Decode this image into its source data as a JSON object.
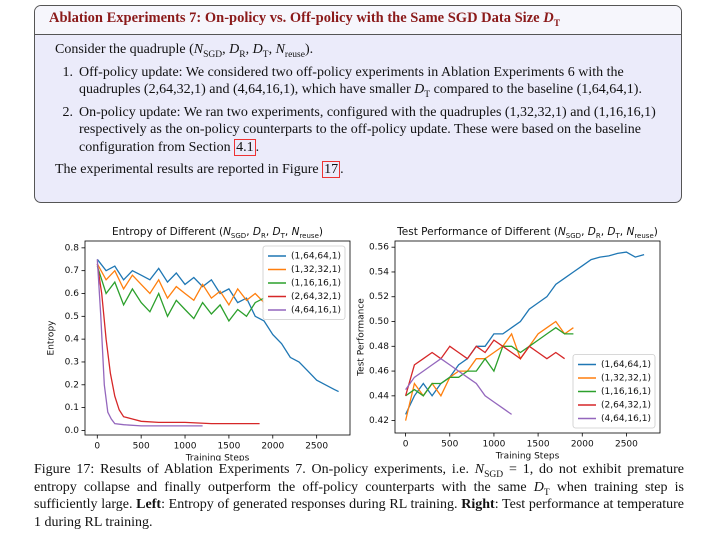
{
  "box": {
    "title": [
      "Ablation Experiments 7: On-policy vs. Off-policy with the Same SGD Data Size ",
      {
        "var": "D",
        "sub": "T"
      }
    ],
    "intro": [
      "Consider the quadruple (",
      {
        "var": "N",
        "sub": "SGD"
      },
      ", ",
      {
        "var": "D",
        "sub": "R"
      },
      ", ",
      {
        "var": "D",
        "sub": "T"
      },
      ", ",
      {
        "var": "N",
        "sub": "reuse"
      },
      ")."
    ],
    "items": [
      {
        "marker": "1.",
        "text": [
          "Off-policy update: We considered two off-policy experiments in Ablation Experiments 6 with the quadruples (2,64,32,1) and (4,64,16,1), which have smaller ",
          {
            "var": "D",
            "sub": "T"
          },
          " compared to the baseline (1,64,64,1)."
        ]
      },
      {
        "marker": "2.",
        "text": [
          "On-policy update: We ran two experiments, configured with the quadruples (1,32,32,1) and (1,16,16,1) respectively as the on-policy counterparts to the off-policy update. These were based on the baseline configuration from Section ",
          {
            "ref": "4.1"
          },
          "."
        ]
      }
    ],
    "outro": [
      "The experimental results are reported in Figure ",
      {
        "ref": "17"
      },
      "."
    ]
  },
  "chart_data": [
    {
      "type": "line",
      "title": [
        "Entropy of  Different (",
        {
          "var": "N",
          "sub": "SGD"
        },
        ", ",
        {
          "var": "D",
          "sub": "R"
        },
        ", ",
        {
          "var": "D",
          "sub": "T"
        },
        ", ",
        {
          "var": "N",
          "sub": "reuse"
        },
        ")"
      ],
      "xlabel": "Training Steps",
      "ylabel": "Entropy",
      "xlim": [
        -140,
        2880
      ],
      "ylim": [
        -0.02,
        0.83
      ],
      "xticks": [
        0,
        500,
        1000,
        1500,
        2000,
        2500
      ],
      "yticks": [
        {
          "value": 0,
          "label": "0.0"
        },
        0.1,
        0.2,
        0.3,
        0.4,
        0.5,
        0.6,
        0.7,
        0.8
      ],
      "legend": "upper right",
      "series": [
        {
          "name": "(1,64,64,1)",
          "color": "#1f77b4",
          "x": [
            0,
            100,
            200,
            300,
            400,
            500,
            600,
            700,
            800,
            900,
            1000,
            1100,
            1200,
            1300,
            1400,
            1500,
            1600,
            1700,
            1800,
            1900,
            2000,
            2100,
            2200,
            2300,
            2400,
            2500,
            2600,
            2700,
            2750
          ],
          "values": [
            0.75,
            0.7,
            0.72,
            0.66,
            0.7,
            0.68,
            0.66,
            0.71,
            0.65,
            0.69,
            0.64,
            0.67,
            0.63,
            0.66,
            0.6,
            0.62,
            0.56,
            0.58,
            0.5,
            0.48,
            0.42,
            0.38,
            0.32,
            0.3,
            0.26,
            0.22,
            0.2,
            0.18,
            0.17
          ]
        },
        {
          "name": "(1,32,32,1)",
          "color": "#ff7f0e",
          "x": [
            0,
            100,
            200,
            300,
            400,
            500,
            600,
            700,
            800,
            900,
            1000,
            1100,
            1200,
            1300,
            1400,
            1500,
            1600,
            1700,
            1800,
            1900
          ],
          "values": [
            0.73,
            0.66,
            0.7,
            0.62,
            0.68,
            0.64,
            0.6,
            0.66,
            0.58,
            0.63,
            0.6,
            0.57,
            0.64,
            0.58,
            0.61,
            0.55,
            0.62,
            0.57,
            0.6,
            0.56
          ]
        },
        {
          "name": "(1,16,16,1)",
          "color": "#2ca02c",
          "x": [
            0,
            100,
            200,
            300,
            400,
            500,
            600,
            700,
            800,
            900,
            1000,
            1100,
            1200,
            1300,
            1400,
            1500,
            1600,
            1700,
            1800,
            1900
          ],
          "values": [
            0.72,
            0.6,
            0.65,
            0.55,
            0.62,
            0.56,
            0.52,
            0.6,
            0.5,
            0.57,
            0.53,
            0.49,
            0.56,
            0.51,
            0.55,
            0.48,
            0.53,
            0.5,
            0.56,
            0.58
          ]
        },
        {
          "name": "(2,64,32,1)",
          "color": "#d62728",
          "x": [
            0,
            50,
            100,
            150,
            200,
            250,
            300,
            400,
            500,
            700,
            1000,
            1300,
            1600,
            1850
          ],
          "values": [
            0.73,
            0.6,
            0.4,
            0.25,
            0.15,
            0.09,
            0.06,
            0.05,
            0.04,
            0.035,
            0.035,
            0.03,
            0.03,
            0.03
          ]
        },
        {
          "name": "(4,64,16,1)",
          "color": "#9467bd",
          "x": [
            0,
            40,
            80,
            120,
            160,
            200,
            300,
            500,
            800,
            1200
          ],
          "values": [
            0.75,
            0.5,
            0.2,
            0.08,
            0.05,
            0.03,
            0.025,
            0.02,
            0.02,
            0.02
          ]
        }
      ]
    },
    {
      "type": "line",
      "title": [
        "Test Performance of Different (",
        {
          "var": "N",
          "sub": "SGD"
        },
        ", ",
        {
          "var": "D",
          "sub": "R"
        },
        ", ",
        {
          "var": "D",
          "sub": "T"
        },
        ", ",
        {
          "var": "N",
          "sub": "reuse"
        },
        ")"
      ],
      "xlabel": "Training Steps",
      "ylabel": "Test Performance",
      "xlim": [
        -120,
        2880
      ],
      "ylim": [
        0.41,
        0.565
      ],
      "xticks": [
        0,
        500,
        1000,
        1500,
        2000,
        2500
      ],
      "yticks": [
        0.42,
        0.44,
        0.46,
        0.48,
        {
          "value": 0.5,
          "label": "0.50"
        },
        0.52,
        0.54,
        0.56
      ],
      "legend": "lower right",
      "series": [
        {
          "name": "(1,64,64,1)",
          "color": "#1f77b4",
          "x": [
            0,
            100,
            200,
            300,
            400,
            500,
            600,
            700,
            800,
            900,
            1000,
            1100,
            1200,
            1300,
            1400,
            1500,
            1600,
            1700,
            1800,
            1900,
            2000,
            2100,
            2200,
            2300,
            2400,
            2500,
            2600,
            2700
          ],
          "values": [
            0.425,
            0.44,
            0.45,
            0.44,
            0.45,
            0.455,
            0.465,
            0.47,
            0.48,
            0.48,
            0.49,
            0.49,
            0.495,
            0.5,
            0.51,
            0.515,
            0.52,
            0.53,
            0.535,
            0.54,
            0.545,
            0.55,
            0.552,
            0.553,
            0.555,
            0.556,
            0.552,
            0.554
          ]
        },
        {
          "name": "(1,32,32,1)",
          "color": "#ff7f0e",
          "x": [
            0,
            100,
            200,
            300,
            400,
            500,
            600,
            700,
            800,
            900,
            1000,
            1100,
            1200,
            1300,
            1400,
            1500,
            1600,
            1700,
            1800,
            1900
          ],
          "values": [
            0.42,
            0.45,
            0.44,
            0.45,
            0.44,
            0.455,
            0.46,
            0.46,
            0.47,
            0.47,
            0.475,
            0.48,
            0.49,
            0.47,
            0.48,
            0.49,
            0.495,
            0.5,
            0.49,
            0.495
          ]
        },
        {
          "name": "(1,16,16,1)",
          "color": "#2ca02c",
          "x": [
            0,
            100,
            200,
            300,
            400,
            500,
            600,
            700,
            800,
            900,
            1000,
            1100,
            1200,
            1300,
            1400,
            1500,
            1600,
            1700,
            1800,
            1900
          ],
          "values": [
            0.44,
            0.445,
            0.44,
            0.45,
            0.45,
            0.455,
            0.455,
            0.46,
            0.46,
            0.47,
            0.46,
            0.48,
            0.48,
            0.475,
            0.48,
            0.485,
            0.49,
            0.495,
            0.49,
            0.49
          ]
        },
        {
          "name": "(2,64,32,1)",
          "color": "#d62728",
          "x": [
            0,
            100,
            200,
            300,
            400,
            500,
            600,
            700,
            800,
            900,
            1000,
            1100,
            1200,
            1300,
            1400,
            1500,
            1600,
            1700,
            1800
          ],
          "values": [
            0.44,
            0.465,
            0.47,
            0.475,
            0.47,
            0.48,
            0.475,
            0.47,
            0.48,
            0.475,
            0.485,
            0.48,
            0.475,
            0.47,
            0.48,
            0.475,
            0.47,
            0.475,
            0.47
          ]
        },
        {
          "name": "(4,64,16,1)",
          "color": "#9467bd",
          "x": [
            0,
            100,
            200,
            300,
            400,
            500,
            600,
            700,
            800,
            900,
            1000,
            1100,
            1200
          ],
          "values": [
            0.445,
            0.455,
            0.46,
            0.465,
            0.47,
            0.465,
            0.46,
            0.455,
            0.45,
            0.44,
            0.435,
            0.43,
            0.425
          ]
        }
      ]
    }
  ],
  "caption": [
    "Figure 17: Results of Ablation Experiments 7. On-policy experiments, i.e. ",
    {
      "var": "N",
      "sub": "SGD"
    },
    " = 1, do not exhibit premature entropy collapse and finally outperform the off-policy counterparts with the same ",
    {
      "var": "D",
      "sub": "T"
    },
    " when training step is sufficiently large. ",
    {
      "bold": "Left"
    },
    ": Entropy of generated responses during RL training. ",
    {
      "bold": "Right"
    },
    ": Test performance at temperature 1 during RL training."
  ]
}
